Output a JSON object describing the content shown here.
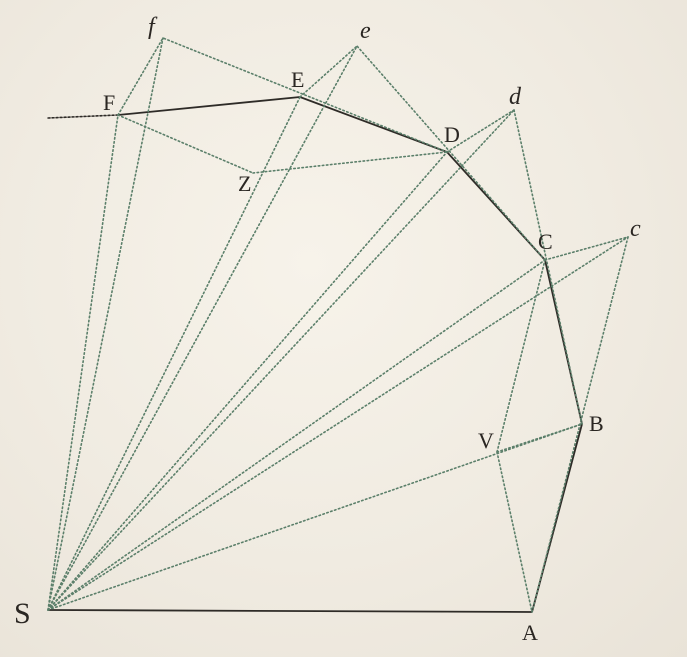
{
  "labels": {
    "S": "S",
    "A": "A",
    "B": "B",
    "C": "C",
    "D": "D",
    "E": "E",
    "F": "F",
    "V": "V",
    "Z": "Z",
    "c": "c",
    "d": "d",
    "e": "e",
    "f": "f"
  },
  "colors": {
    "solid_line": "#2e2b27",
    "dotted_line": "#5b7f6a",
    "paper": "#f1ede4"
  }
}
